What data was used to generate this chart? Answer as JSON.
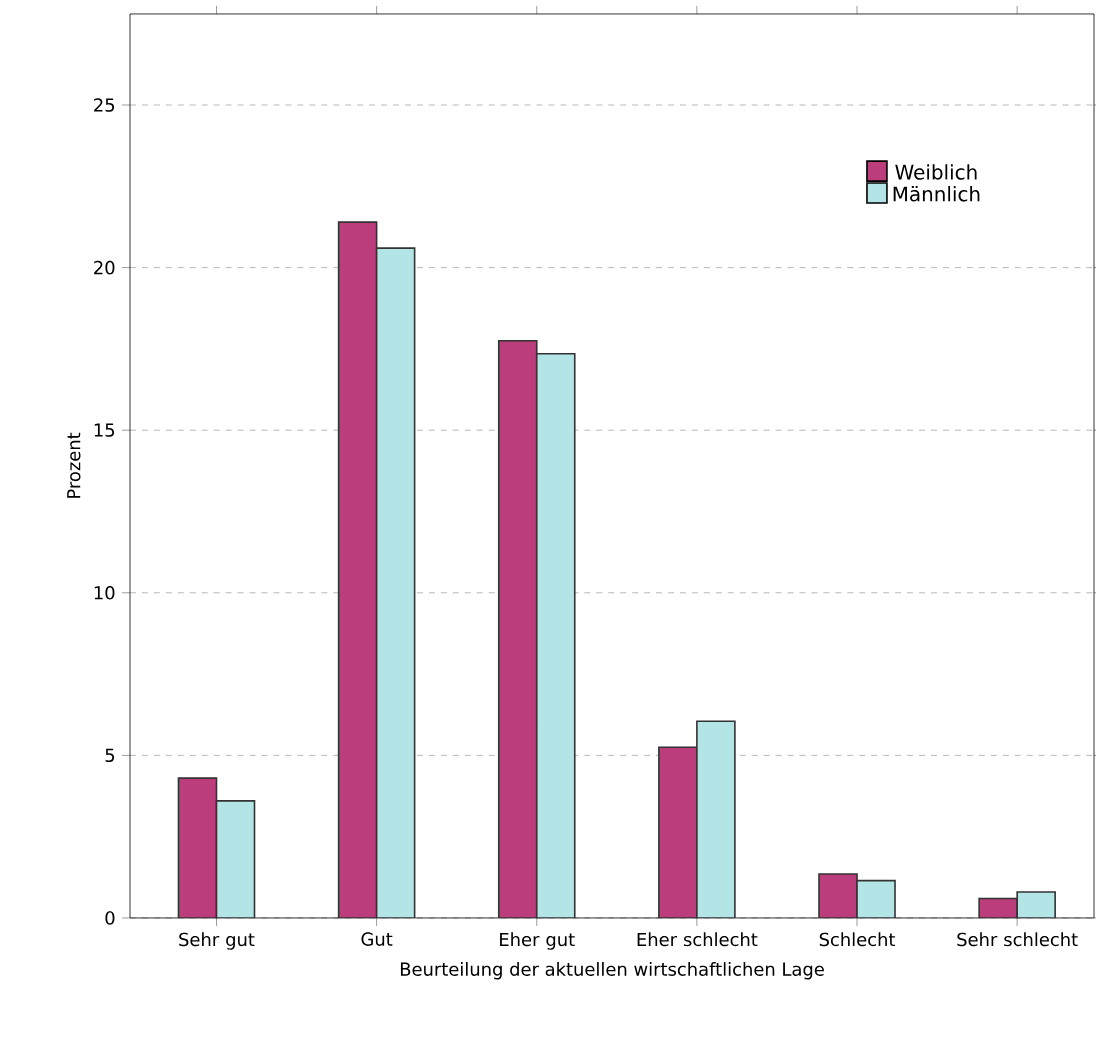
{
  "chart_data": {
    "type": "bar",
    "xlabel": "Beurteilung der aktuellen wirtschaftlichen Lage",
    "ylabel": "Prozent",
    "categories": [
      "Sehr gut",
      "Gut",
      "Eher gut",
      "Eher schlecht",
      "Schlecht",
      "Sehr schlecht"
    ],
    "series": [
      {
        "name": "Weiblich",
        "color": "#bb3d7b",
        "values": [
          4.3,
          21.4,
          17.75,
          5.25,
          1.35,
          0.6
        ]
      },
      {
        "name": "Männlich",
        "color": "#b3e5e6",
        "values": [
          3.6,
          20.6,
          17.35,
          6.05,
          1.15,
          0.8
        ]
      }
    ],
    "ylim": [
      0,
      27.8
    ],
    "yticks": [
      0,
      5,
      10,
      15,
      20,
      25
    ],
    "grid": "y",
    "legend": "top right"
  }
}
